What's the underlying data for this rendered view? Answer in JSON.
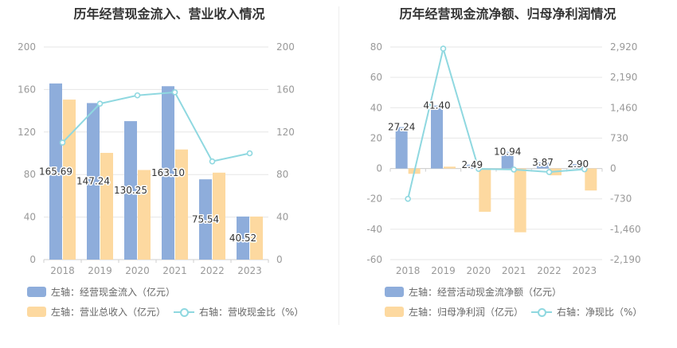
{
  "colors": {
    "blue": "#8eaddb",
    "orange": "#fdd9a0",
    "line": "#8fd8e0",
    "grid": "#e6e6e6",
    "axis_text": "#999999"
  },
  "chart_data": [
    {
      "type": "bar",
      "title": "历年经营现金流入、营业收入情况",
      "categories": [
        "2018",
        "2019",
        "2020",
        "2021",
        "2022",
        "2023"
      ],
      "left_axis": {
        "ticks": [
          "0",
          "40",
          "80",
          "120",
          "160",
          "200"
        ],
        "ylim": [
          0,
          200
        ]
      },
      "right_axis": {
        "ticks": [
          "0",
          "40",
          "80",
          "120",
          "160",
          "200"
        ],
        "ylim": [
          0,
          200
        ]
      },
      "series": [
        {
          "name": "左轴：经营现金流入（亿元）",
          "kind": "bar",
          "axis": "left",
          "color": "#8eaddb",
          "values": [
            165.69,
            147.24,
            130.25,
            163.1,
            75.54,
            40.52
          ],
          "labels": [
            "165.69",
            "147.24",
            "130.25",
            "163.10",
            "75.54",
            "40.52"
          ]
        },
        {
          "name": "左轴：营业总收入（亿元）",
          "kind": "bar",
          "axis": "left",
          "color": "#fdd9a0",
          "values": [
            150.5,
            100.4,
            84.3,
            103.6,
            81.8,
            40.5
          ]
        },
        {
          "name": "右轴：营收现金比（%）",
          "kind": "line",
          "axis": "right",
          "color": "#8fd8e0",
          "values": [
            110.1,
            146.7,
            154.5,
            157.4,
            92.4,
            100.0
          ]
        }
      ]
    },
    {
      "type": "bar",
      "title": "历年经营现金流净额、归母净利润情况",
      "categories": [
        "2018",
        "2019",
        "2020",
        "2021",
        "2022",
        "2023"
      ],
      "left_axis": {
        "ticks": [
          "-60",
          "-40",
          "-20",
          "0",
          "20",
          "40",
          "60",
          "80"
        ],
        "ylim": [
          -60,
          80
        ]
      },
      "right_axis": {
        "ticks": [
          "-2,190",
          "-1,460",
          "-730",
          "0",
          "730",
          "1,460",
          "2,190",
          "2,920"
        ],
        "ylim": [
          -2190,
          2920
        ]
      },
      "series": [
        {
          "name": "左轴：经营活动现金流净额（亿元）",
          "kind": "bar",
          "axis": "left",
          "color": "#8eaddb",
          "values": [
            27.24,
            41.4,
            2.49,
            10.94,
            3.87,
            2.9
          ],
          "labels": [
            "27.24",
            "41.40",
            "2.49",
            "10.94",
            "3.87",
            "2.90"
          ]
        },
        {
          "name": "左轴：归母净利润（亿元）",
          "kind": "bar",
          "axis": "left",
          "color": "#fdd9a0",
          "values": [
            -3.5,
            1.2,
            -28.5,
            -42.0,
            -4.5,
            -14.5
          ]
        },
        {
          "name": "右轴：净现比（%）",
          "kind": "line",
          "axis": "right",
          "color": "#8fd8e0",
          "values": [
            -730,
            2880,
            -10,
            -25,
            -85,
            -20
          ]
        }
      ]
    }
  ]
}
